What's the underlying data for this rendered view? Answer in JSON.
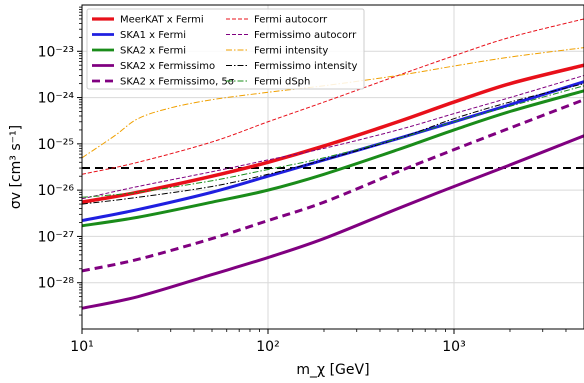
{
  "chart_data": {
    "type": "line",
    "title": "",
    "xlabel": "m_χ [GeV]",
    "ylabel": "σv [cm³ s⁻¹]",
    "xscale": "log",
    "yscale": "log",
    "xlim": [
      10,
      5000
    ],
    "ylim": [
      1e-29,
      1e-22
    ],
    "x_ticks": [
      {
        "value": 10,
        "label": "10¹"
      },
      {
        "value": 100,
        "label": "10²"
      },
      {
        "value": 1000,
        "label": "10³"
      }
    ],
    "y_ticks": [
      {
        "value": 1e-28,
        "label": "10⁻²⁸"
      },
      {
        "value": 1e-27,
        "label": "10⁻²⁷"
      },
      {
        "value": 1e-26,
        "label": "10⁻²⁶"
      },
      {
        "value": 1e-25,
        "label": "10⁻²⁵"
      },
      {
        "value": 1e-24,
        "label": "10⁻²⁴"
      },
      {
        "value": 1e-23,
        "label": "10⁻²³"
      }
    ],
    "grid": true,
    "legend_position": "top-left",
    "series": [
      {
        "name": "MeerKAT x Fermi",
        "color": "#e8101a",
        "width": 3.5,
        "dash": "",
        "x": [
          10,
          20,
          50,
          100,
          200,
          500,
          1000,
          2000,
          5000
        ],
        "y": [
          5.5e-27,
          9e-27,
          2e-26,
          4e-26,
          9e-26,
          3e-25,
          8e-25,
          2e-24,
          5e-24
        ]
      },
      {
        "name": "SKA1 x Fermi",
        "color": "#1f1fe0",
        "width": 3,
        "dash": "",
        "x": [
          10,
          20,
          50,
          100,
          200,
          500,
          1000,
          2000,
          5000
        ],
        "y": [
          2.2e-27,
          3.8e-27,
          9e-27,
          2e-26,
          4.5e-26,
          1.3e-25,
          3e-25,
          7e-25,
          2.2e-24
        ]
      },
      {
        "name": "SKA2 x Fermi",
        "color": "#1a8c1a",
        "width": 3,
        "dash": "",
        "x": [
          10,
          20,
          50,
          100,
          200,
          500,
          1000,
          2000,
          5000
        ],
        "y": [
          1.7e-27,
          2.6e-27,
          5.5e-27,
          1e-26,
          2.2e-26,
          7.5e-26,
          2e-25,
          5e-25,
          1.4e-24
        ]
      },
      {
        "name": "SKA2 x Fermissimo",
        "color": "#800080",
        "width": 3,
        "dash": "",
        "x": [
          10,
          20,
          50,
          100,
          200,
          500,
          1000,
          2000,
          5000
        ],
        "y": [
          2.8e-29,
          5e-29,
          1.5e-28,
          3.5e-28,
          9e-28,
          4e-27,
          1.2e-26,
          3.5e-26,
          1.5e-25
        ]
      },
      {
        "name": "SKA2 x Fermissimo, 5σ",
        "color": "#800080",
        "width": 3,
        "dash": "8,5",
        "x": [
          10,
          20,
          50,
          100,
          200,
          500,
          1000,
          2000,
          5000
        ],
        "y": [
          1.8e-28,
          3.2e-28,
          9e-28,
          2.2e-27,
          5.5e-27,
          2.5e-26,
          7.5e-26,
          2.2e-25,
          9e-25
        ]
      },
      {
        "name": "Fermi autocorr",
        "color": "#e8101a",
        "width": 1,
        "dash": "4,2",
        "x": [
          10,
          20,
          50,
          100,
          200,
          500,
          1000,
          2000,
          5000
        ],
        "y": [
          2.2e-26,
          4e-26,
          1.1e-25,
          3e-25,
          8e-25,
          3e-24,
          8e-24,
          2e-23,
          5e-23
        ]
      },
      {
        "name": "Fermissimo autocorr",
        "color": "#800080",
        "width": 1,
        "dash": "4,2",
        "x": [
          10,
          20,
          50,
          100,
          200,
          500,
          1000,
          2000,
          5000
        ],
        "y": [
          6.5e-27,
          1.2e-26,
          2.5e-26,
          4.5e-26,
          8e-26,
          2e-25,
          4.5e-25,
          1e-24,
          3e-24
        ]
      },
      {
        "name": "Fermi intensity",
        "color": "#f0a000",
        "width": 1,
        "dash": "6,2,1.5,2",
        "x": [
          10,
          15,
          20,
          30,
          50,
          100,
          200,
          500,
          1000,
          2000,
          5000
        ],
        "y": [
          5e-26,
          1.5e-25,
          3.5e-25,
          6e-25,
          9e-25,
          1.3e-24,
          1.8e-24,
          3e-24,
          4.8e-24,
          7.5e-24,
          1.2e-23
        ]
      },
      {
        "name": "Fermissimo intensity",
        "color": "#000000",
        "width": 1,
        "dash": "6,2,1.5,2",
        "x": [
          10,
          20,
          50,
          100,
          200,
          500,
          1000,
          2000,
          5000
        ],
        "y": [
          5e-27,
          7e-27,
          1.2e-26,
          2.2e-26,
          4.5e-26,
          1.3e-25,
          3.5e-25,
          8e-25,
          2e-24
        ]
      },
      {
        "name": "Fermi dSph",
        "color": "#1a8c1a",
        "width": 1,
        "dash": "6,2,1.5,2",
        "x": [
          10,
          20,
          50,
          100,
          200,
          500,
          1000,
          2000,
          5000
        ],
        "y": [
          7e-27,
          9e-27,
          1.6e-26,
          2.8e-26,
          5e-26,
          1.3e-25,
          3e-25,
          6.5e-25,
          1.8e-24
        ]
      }
    ],
    "reference_lines": [
      {
        "y": 3e-26,
        "color": "#000000",
        "width": 2,
        "dash": "8,5"
      }
    ],
    "legend_columns": [
      [
        "MeerKAT x Fermi",
        "SKA1 x Fermi",
        "SKA2 x Fermi",
        "SKA2 x Fermissimo",
        "SKA2 x Fermissimo, 5σ"
      ],
      [
        "Fermi autocorr",
        "Fermissimo autocorr",
        "Fermi intensity",
        "Fermissimo intensity",
        "Fermi dSph"
      ]
    ]
  }
}
